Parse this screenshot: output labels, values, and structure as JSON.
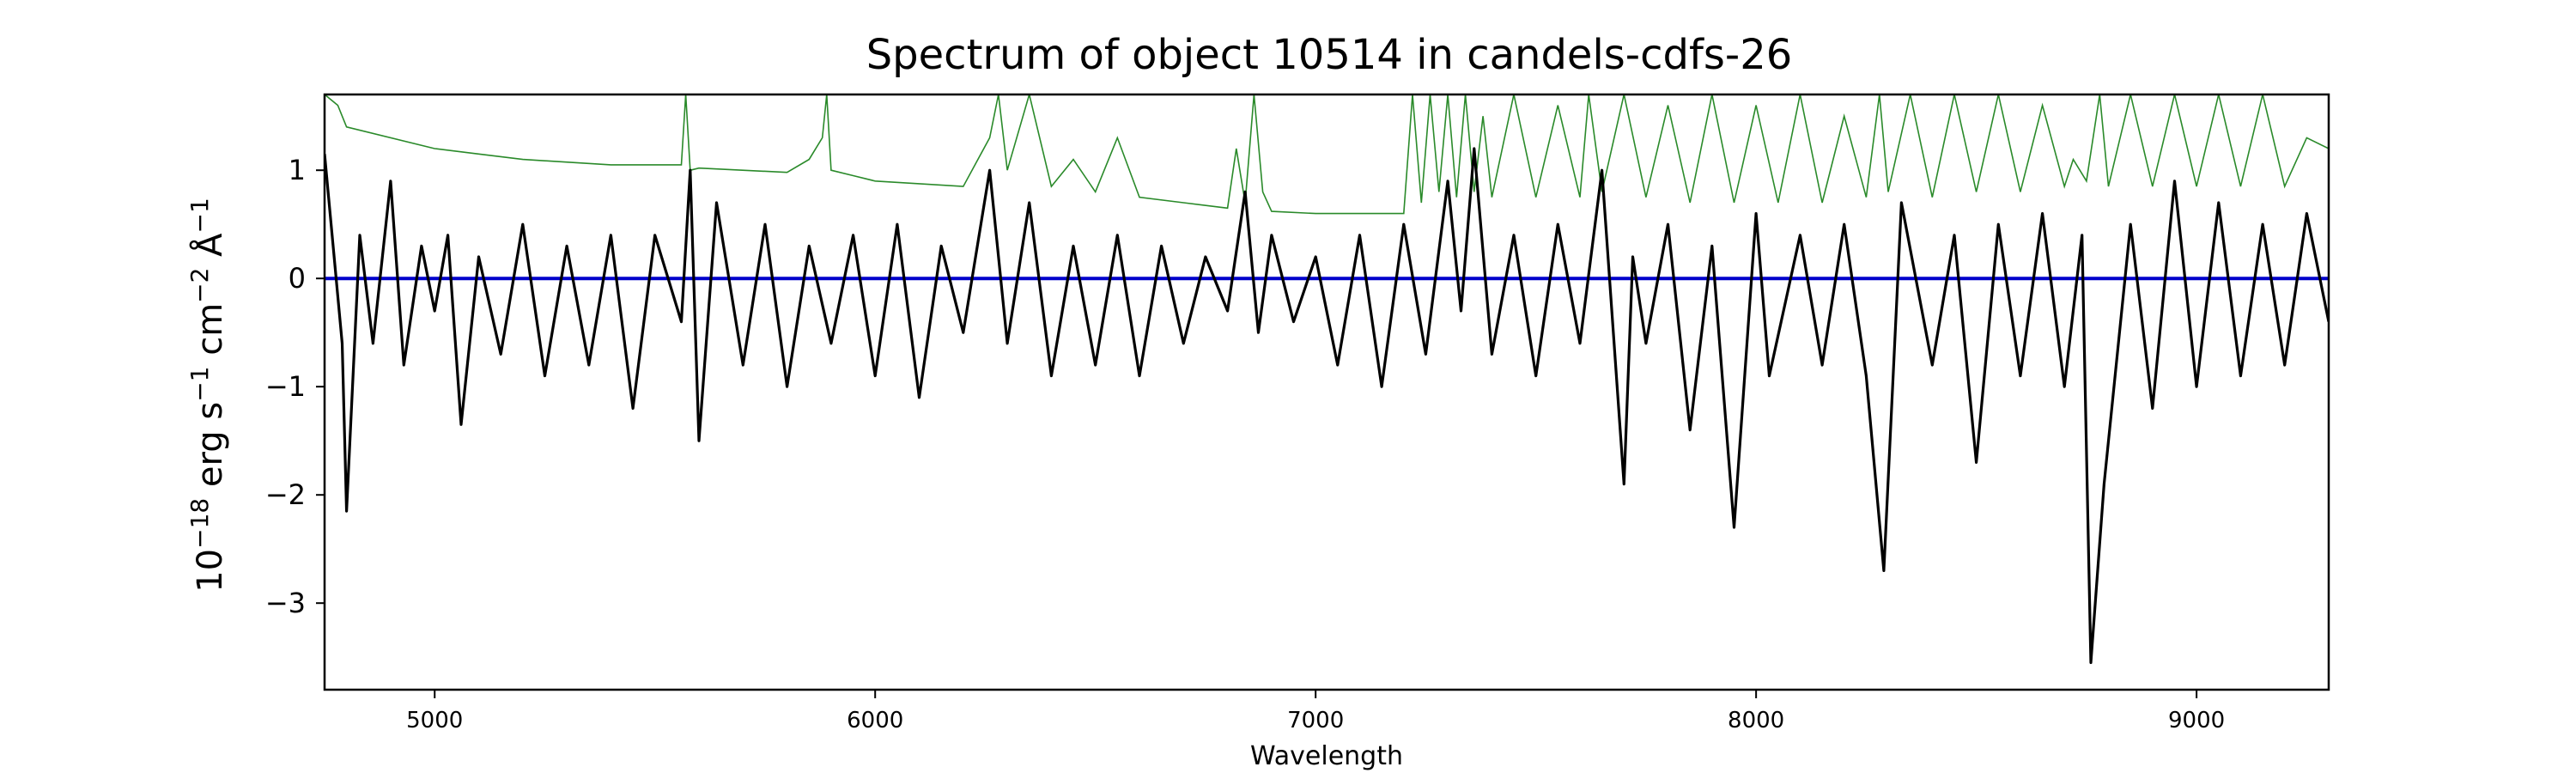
{
  "chart_data": {
    "type": "line",
    "title": "Spectrum of object 10514 in candels-cdfs-26",
    "xlabel": "Wavelength",
    "ylabel_base": "10",
    "ylabel_exp": "−18",
    "ylabel_unit_1": " erg s",
    "ylabel_exp_2": "−1",
    "ylabel_unit_2": " cm",
    "ylabel_exp_3": "−2",
    "ylabel_unit_3": " Å",
    "ylabel_exp_4": "−1",
    "xlim": [
      4750,
      9300
    ],
    "ylim": [
      -3.8,
      1.7
    ],
    "xticks": [
      5000,
      6000,
      7000,
      8000,
      9000
    ],
    "xtick_labels": [
      "5000",
      "6000",
      "7000",
      "8000",
      "9000"
    ],
    "yticks": [
      -3,
      -2,
      -1,
      0,
      1
    ],
    "ytick_labels": [
      "−3",
      "−2",
      "−1",
      "0",
      "1"
    ],
    "grid": false,
    "series": [
      {
        "role": "flux",
        "color": "#000000",
        "x": [
          4750,
          4790,
          4800,
          4830,
          4860,
          4900,
          4930,
          4970,
          5000,
          5030,
          5060,
          5100,
          5150,
          5200,
          5250,
          5300,
          5350,
          5400,
          5450,
          5500,
          5560,
          5580,
          5600,
          5640,
          5700,
          5750,
          5800,
          5850,
          5900,
          5950,
          6000,
          6050,
          6100,
          6150,
          6200,
          6260,
          6300,
          6350,
          6400,
          6450,
          6500,
          6550,
          6600,
          6650,
          6700,
          6750,
          6800,
          6840,
          6870,
          6900,
          6950,
          7000,
          7050,
          7100,
          7150,
          7200,
          7250,
          7300,
          7330,
          7360,
          7400,
          7450,
          7500,
          7550,
          7600,
          7650,
          7700,
          7720,
          7750,
          7800,
          7850,
          7900,
          7950,
          8000,
          8030,
          8100,
          8150,
          8200,
          8250,
          8290,
          8330,
          8400,
          8450,
          8500,
          8550,
          8600,
          8650,
          8700,
          8740,
          8760,
          8790,
          8850,
          8900,
          8950,
          9000,
          9050,
          9100,
          9150,
          9200,
          9250,
          9300
        ],
        "y": [
          1.15,
          -0.6,
          -2.15,
          0.4,
          -0.6,
          0.9,
          -0.8,
          0.3,
          -0.3,
          0.4,
          -1.35,
          0.2,
          -0.7,
          0.5,
          -0.9,
          0.3,
          -0.8,
          0.4,
          -1.2,
          0.4,
          -0.4,
          1.0,
          -1.5,
          0.7,
          -0.8,
          0.5,
          -1.0,
          0.3,
          -0.6,
          0.4,
          -0.9,
          0.5,
          -1.1,
          0.3,
          -0.5,
          1.0,
          -0.6,
          0.7,
          -0.9,
          0.3,
          -0.8,
          0.4,
          -0.9,
          0.3,
          -0.6,
          0.2,
          -0.3,
          0.8,
          -0.5,
          0.4,
          -0.4,
          0.2,
          -0.8,
          0.4,
          -1.0,
          0.5,
          -0.7,
          0.9,
          -0.3,
          1.2,
          -0.7,
          0.4,
          -0.9,
          0.5,
          -0.6,
          1.0,
          -1.9,
          0.2,
          -0.6,
          0.5,
          -1.4,
          0.3,
          -2.3,
          0.6,
          -0.9,
          0.4,
          -0.8,
          0.5,
          -0.9,
          -2.7,
          0.7,
          -0.8,
          0.4,
          -1.7,
          0.5,
          -0.9,
          0.6,
          -1.0,
          0.4,
          -3.55,
          -1.9,
          0.5,
          -1.2,
          0.9,
          -1.0,
          0.7,
          -0.9,
          0.5,
          -0.8,
          0.6,
          -0.4
        ]
      },
      {
        "role": "model",
        "color": "#0000cc",
        "x": [
          4750,
          9300
        ],
        "y": [
          0,
          0
        ]
      },
      {
        "role": "error",
        "color": "#2a8a2a",
        "x": [
          4750,
          4780,
          4800,
          5000,
          5100,
          5200,
          5400,
          5560,
          5570,
          5580,
          5600,
          5800,
          5850,
          5880,
          5890,
          5900,
          5950,
          6000,
          6200,
          6260,
          6280,
          6300,
          6350,
          6400,
          6450,
          6500,
          6550,
          6600,
          6700,
          6800,
          6820,
          6840,
          6860,
          6880,
          6900,
          7000,
          7100,
          7200,
          7220,
          7240,
          7260,
          7280,
          7300,
          7320,
          7340,
          7360,
          7380,
          7400,
          7450,
          7500,
          7550,
          7600,
          7620,
          7650,
          7700,
          7750,
          7800,
          7850,
          7900,
          7950,
          8000,
          8050,
          8100,
          8150,
          8200,
          8250,
          8280,
          8300,
          8350,
          8400,
          8450,
          8500,
          8550,
          8600,
          8650,
          8700,
          8720,
          8750,
          8780,
          8800,
          8850,
          8900,
          8950,
          9000,
          9050,
          9100,
          9150,
          9200,
          9250,
          9300
        ],
        "y": [
          1.7,
          1.6,
          1.4,
          1.2,
          1.15,
          1.1,
          1.05,
          1.05,
          1.7,
          1.0,
          1.02,
          0.98,
          1.1,
          1.3,
          1.7,
          1.0,
          0.95,
          0.9,
          0.85,
          1.3,
          1.7,
          1.0,
          1.7,
          0.85,
          1.1,
          0.8,
          1.3,
          0.75,
          0.7,
          0.65,
          1.2,
          0.7,
          1.7,
          0.8,
          0.62,
          0.6,
          0.6,
          0.6,
          1.7,
          0.7,
          1.7,
          0.8,
          1.7,
          0.75,
          1.7,
          0.8,
          1.5,
          0.75,
          1.7,
          0.75,
          1.6,
          0.75,
          1.7,
          0.8,
          1.7,
          0.75,
          1.6,
          0.7,
          1.7,
          0.7,
          1.6,
          0.7,
          1.7,
          0.7,
          1.5,
          0.75,
          1.7,
          0.8,
          1.7,
          0.75,
          1.7,
          0.8,
          1.7,
          0.8,
          1.6,
          0.85,
          1.1,
          0.9,
          1.7,
          0.85,
          1.7,
          0.85,
          1.7,
          0.85,
          1.7,
          0.85,
          1.7,
          0.85,
          1.3,
          1.2
        ]
      }
    ]
  }
}
